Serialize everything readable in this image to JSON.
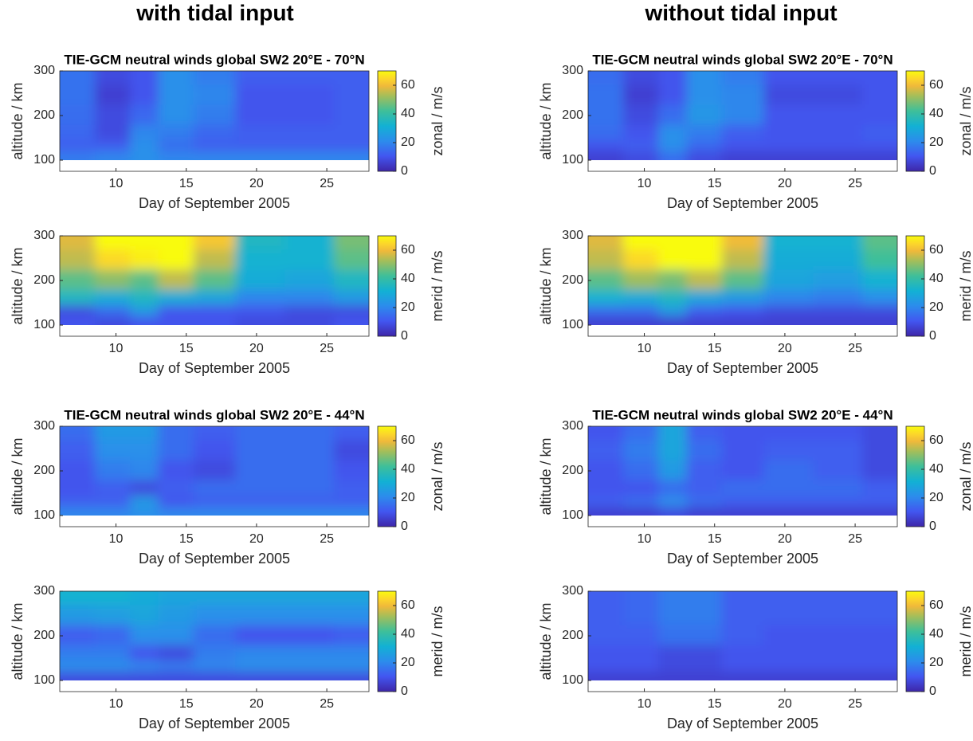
{
  "figure_titles": [
    "with tidal input",
    "without tidal input"
  ],
  "chart_data": [
    {
      "type": "heatmap",
      "title": "TIE-GCM neutral winds global SW2 20°E - 70°N",
      "xlabel": "Day of September 2005",
      "ylabel": "altitude / km",
      "colorbar_label": "zonal / m/s",
      "colormap": "parula",
      "xlim": [
        6,
        28
      ],
      "xticks": [
        10,
        15,
        20,
        25
      ],
      "ylim": [
        75,
        300
      ],
      "yticks": [
        100,
        200,
        300
      ],
      "clim": [
        0,
        70
      ],
      "cticks": [
        0,
        20,
        40,
        60
      ],
      "x": [
        7,
        10,
        12,
        14,
        17,
        20,
        24,
        27
      ],
      "y": [
        110,
        130,
        160,
        200,
        250,
        290
      ],
      "z": [
        [
          18,
          20,
          22,
          20,
          20,
          20,
          20,
          20
        ],
        [
          12,
          12,
          22,
          15,
          12,
          12,
          12,
          12
        ],
        [
          14,
          8,
          20,
          18,
          14,
          12,
          12,
          12
        ],
        [
          15,
          8,
          14,
          22,
          18,
          10,
          10,
          12
        ],
        [
          16,
          6,
          10,
          22,
          20,
          10,
          10,
          12
        ],
        [
          16,
          8,
          10,
          22,
          18,
          12,
          12,
          12
        ]
      ]
    },
    {
      "type": "heatmap",
      "xlabel": "Day of September 2005",
      "ylabel": "altitude / km",
      "colorbar_label": "merid / m/s",
      "colormap": "parula",
      "xlim": [
        6,
        28
      ],
      "xticks": [
        10,
        15,
        20,
        25
      ],
      "ylim": [
        75,
        300
      ],
      "yticks": [
        100,
        200,
        300
      ],
      "clim": [
        0,
        70
      ],
      "cticks": [
        0,
        20,
        40,
        60
      ],
      "x": [
        7,
        10,
        12,
        14,
        17,
        20,
        24,
        27
      ],
      "y": [
        110,
        130,
        160,
        200,
        250,
        290
      ],
      "z": [
        [
          10,
          8,
          10,
          10,
          10,
          8,
          8,
          10
        ],
        [
          8,
          15,
          25,
          10,
          10,
          10,
          8,
          8
        ],
        [
          35,
          30,
          35,
          30,
          28,
          20,
          20,
          25
        ],
        [
          45,
          50,
          45,
          55,
          45,
          30,
          28,
          35
        ],
        [
          55,
          65,
          68,
          70,
          55,
          32,
          32,
          45
        ],
        [
          58,
          70,
          72,
          72,
          62,
          35,
          32,
          48
        ]
      ]
    },
    {
      "type": "heatmap",
      "title": "TIE-GCM neutral winds global SW2 20°E - 44°N",
      "xlabel": "Day of September 2005",
      "ylabel": "altitude / km",
      "colorbar_label": "zonal / m/s",
      "colormap": "parula",
      "xlim": [
        6,
        28
      ],
      "xticks": [
        10,
        15,
        20,
        25
      ],
      "ylim": [
        75,
        300
      ],
      "yticks": [
        100,
        200,
        300
      ],
      "clim": [
        0,
        70
      ],
      "cticks": [
        0,
        20,
        40,
        60
      ],
      "x": [
        7,
        10,
        12,
        14,
        17,
        20,
        24,
        27
      ],
      "y": [
        110,
        130,
        160,
        200,
        250,
        290
      ],
      "z": [
        [
          20,
          20,
          22,
          20,
          20,
          20,
          20,
          20
        ],
        [
          12,
          12,
          25,
          10,
          12,
          12,
          12,
          12
        ],
        [
          10,
          12,
          8,
          12,
          15,
          15,
          15,
          12
        ],
        [
          10,
          18,
          20,
          10,
          8,
          15,
          15,
          10
        ],
        [
          12,
          22,
          22,
          15,
          10,
          15,
          15,
          8
        ],
        [
          15,
          25,
          25,
          15,
          12,
          15,
          15,
          12
        ]
      ]
    },
    {
      "type": "heatmap",
      "xlabel": "Day of September 2005",
      "ylabel": "altitude / km",
      "colorbar_label": "merid / m/s",
      "colormap": "parula",
      "xlim": [
        6,
        28
      ],
      "xticks": [
        10,
        15,
        20,
        25
      ],
      "ylim": [
        75,
        300
      ],
      "yticks": [
        100,
        200,
        300
      ],
      "clim": [
        0,
        70
      ],
      "cticks": [
        0,
        20,
        40,
        60
      ],
      "x": [
        7,
        10,
        12,
        14,
        17,
        20,
        24,
        27
      ],
      "y": [
        110,
        130,
        160,
        200,
        250,
        290
      ],
      "z": [
        [
          8,
          8,
          8,
          8,
          8,
          8,
          8,
          8
        ],
        [
          22,
          22,
          20,
          18,
          20,
          22,
          22,
          22
        ],
        [
          18,
          18,
          10,
          8,
          18,
          20,
          20,
          20
        ],
        [
          12,
          14,
          22,
          22,
          15,
          10,
          10,
          12
        ],
        [
          25,
          26,
          28,
          25,
          22,
          22,
          22,
          22
        ],
        [
          32,
          32,
          30,
          28,
          28,
          28,
          28,
          28
        ]
      ]
    },
    {
      "type": "heatmap",
      "title": "TIE-GCM neutral winds global SW2 20°E - 70°N",
      "xlabel": "Day of September 2005",
      "ylabel": "altitude / km",
      "colorbar_label": "zonal / m/s",
      "colormap": "parula",
      "xlim": [
        6,
        28
      ],
      "xticks": [
        10,
        15,
        20,
        25
      ],
      "ylim": [
        75,
        300
      ],
      "yticks": [
        100,
        200,
        300
      ],
      "clim": [
        0,
        70
      ],
      "cticks": [
        0,
        20,
        40,
        60
      ],
      "x": [
        7,
        10,
        12,
        14,
        17,
        20,
        24,
        27
      ],
      "y": [
        110,
        130,
        160,
        200,
        250,
        290
      ],
      "z": [
        [
          6,
          8,
          15,
          8,
          6,
          6,
          6,
          6
        ],
        [
          10,
          12,
          22,
          14,
          10,
          10,
          10,
          10
        ],
        [
          15,
          10,
          22,
          18,
          12,
          10,
          10,
          12
        ],
        [
          16,
          8,
          15,
          24,
          20,
          10,
          10,
          10
        ],
        [
          16,
          6,
          10,
          22,
          20,
          8,
          8,
          10
        ],
        [
          15,
          8,
          10,
          22,
          18,
          10,
          10,
          10
        ]
      ]
    },
    {
      "type": "heatmap",
      "xlabel": "Day of September 2005",
      "ylabel": "altitude / km",
      "colorbar_label": "merid / m/s",
      "colormap": "parula",
      "xlim": [
        6,
        28
      ],
      "xticks": [
        10,
        15,
        20,
        25
      ],
      "ylim": [
        75,
        300
      ],
      "yticks": [
        100,
        200,
        300
      ],
      "clim": [
        0,
        70
      ],
      "cticks": [
        0,
        20,
        40,
        60
      ],
      "x": [
        7,
        10,
        12,
        14,
        17,
        20,
        24,
        27
      ],
      "y": [
        110,
        130,
        160,
        200,
        250,
        290
      ],
      "z": [
        [
          6,
          6,
          6,
          6,
          6,
          6,
          6,
          6
        ],
        [
          15,
          15,
          25,
          12,
          10,
          8,
          8,
          8
        ],
        [
          32,
          30,
          35,
          28,
          25,
          20,
          18,
          22
        ],
        [
          45,
          52,
          48,
          55,
          45,
          28,
          26,
          32
        ],
        [
          55,
          65,
          70,
          70,
          55,
          30,
          30,
          42
        ],
        [
          58,
          70,
          72,
          72,
          60,
          32,
          32,
          45
        ]
      ]
    },
    {
      "type": "heatmap",
      "title": "TIE-GCM neutral winds global SW2 20°E - 44°N",
      "xlabel": "Day of September 2005",
      "ylabel": "altitude / km",
      "colorbar_label": "zonal / m/s",
      "colormap": "parula",
      "xlim": [
        6,
        28
      ],
      "xticks": [
        10,
        15,
        20,
        25
      ],
      "ylim": [
        75,
        300
      ],
      "yticks": [
        100,
        200,
        300
      ],
      "clim": [
        0,
        70
      ],
      "cticks": [
        0,
        20,
        40,
        60
      ],
      "x": [
        7,
        10,
        12,
        14,
        17,
        20,
        24,
        27
      ],
      "y": [
        110,
        130,
        160,
        200,
        250,
        290
      ],
      "z": [
        [
          6,
          6,
          8,
          6,
          6,
          6,
          6,
          6
        ],
        [
          12,
          15,
          22,
          15,
          12,
          12,
          12,
          12
        ],
        [
          10,
          10,
          15,
          12,
          15,
          15,
          15,
          12
        ],
        [
          10,
          15,
          25,
          12,
          10,
          15,
          12,
          8
        ],
        [
          12,
          18,
          28,
          15,
          10,
          12,
          12,
          8
        ],
        [
          10,
          15,
          28,
          12,
          10,
          10,
          10,
          8
        ]
      ]
    },
    {
      "type": "heatmap",
      "xlabel": "Day of September 2005",
      "ylabel": "altitude / km",
      "colorbar_label": "merid / m/s",
      "colormap": "parula",
      "xlim": [
        6,
        28
      ],
      "xticks": [
        10,
        15,
        20,
        25
      ],
      "ylim": [
        75,
        300
      ],
      "yticks": [
        100,
        200,
        300
      ],
      "clim": [
        0,
        70
      ],
      "cticks": [
        0,
        20,
        40,
        60
      ],
      "x": [
        7,
        10,
        12,
        14,
        17,
        20,
        24,
        27
      ],
      "y": [
        110,
        130,
        160,
        200,
        250,
        290
      ],
      "z": [
        [
          6,
          6,
          6,
          6,
          6,
          6,
          6,
          6
        ],
        [
          10,
          10,
          8,
          8,
          10,
          10,
          10,
          10
        ],
        [
          10,
          10,
          8,
          8,
          10,
          10,
          10,
          10
        ],
        [
          12,
          12,
          16,
          16,
          12,
          10,
          10,
          10
        ],
        [
          12,
          14,
          18,
          18,
          12,
          12,
          12,
          12
        ],
        [
          12,
          14,
          18,
          18,
          12,
          12,
          12,
          12
        ]
      ]
    }
  ]
}
